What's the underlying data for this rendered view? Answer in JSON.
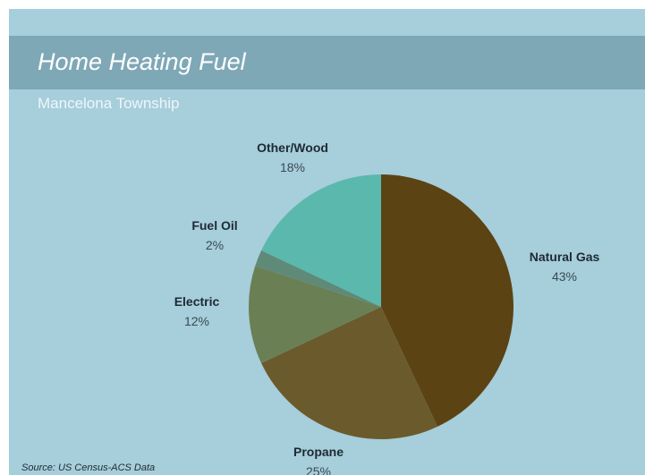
{
  "chart_data": {
    "type": "pie",
    "title": "Home Heating Fuel",
    "subtitle": "Mancelona Township",
    "source": "Source: US Census-ACS Data",
    "slices": [
      {
        "label": "Natural Gas",
        "value": 43,
        "value_label": "43%",
        "color": "#5c4314"
      },
      {
        "label": "Propane",
        "value": 25,
        "value_label": "25%",
        "color": "#6b5a2c"
      },
      {
        "label": "Electric",
        "value": 12,
        "value_label": "12%",
        "color": "#6b7f55"
      },
      {
        "label": "Fuel Oil",
        "value": 2,
        "value_label": "2%",
        "color": "#5f8a78"
      },
      {
        "label": "Other/Wood",
        "value": 18,
        "value_label": "18%",
        "color": "#5bb8ac"
      }
    ]
  }
}
